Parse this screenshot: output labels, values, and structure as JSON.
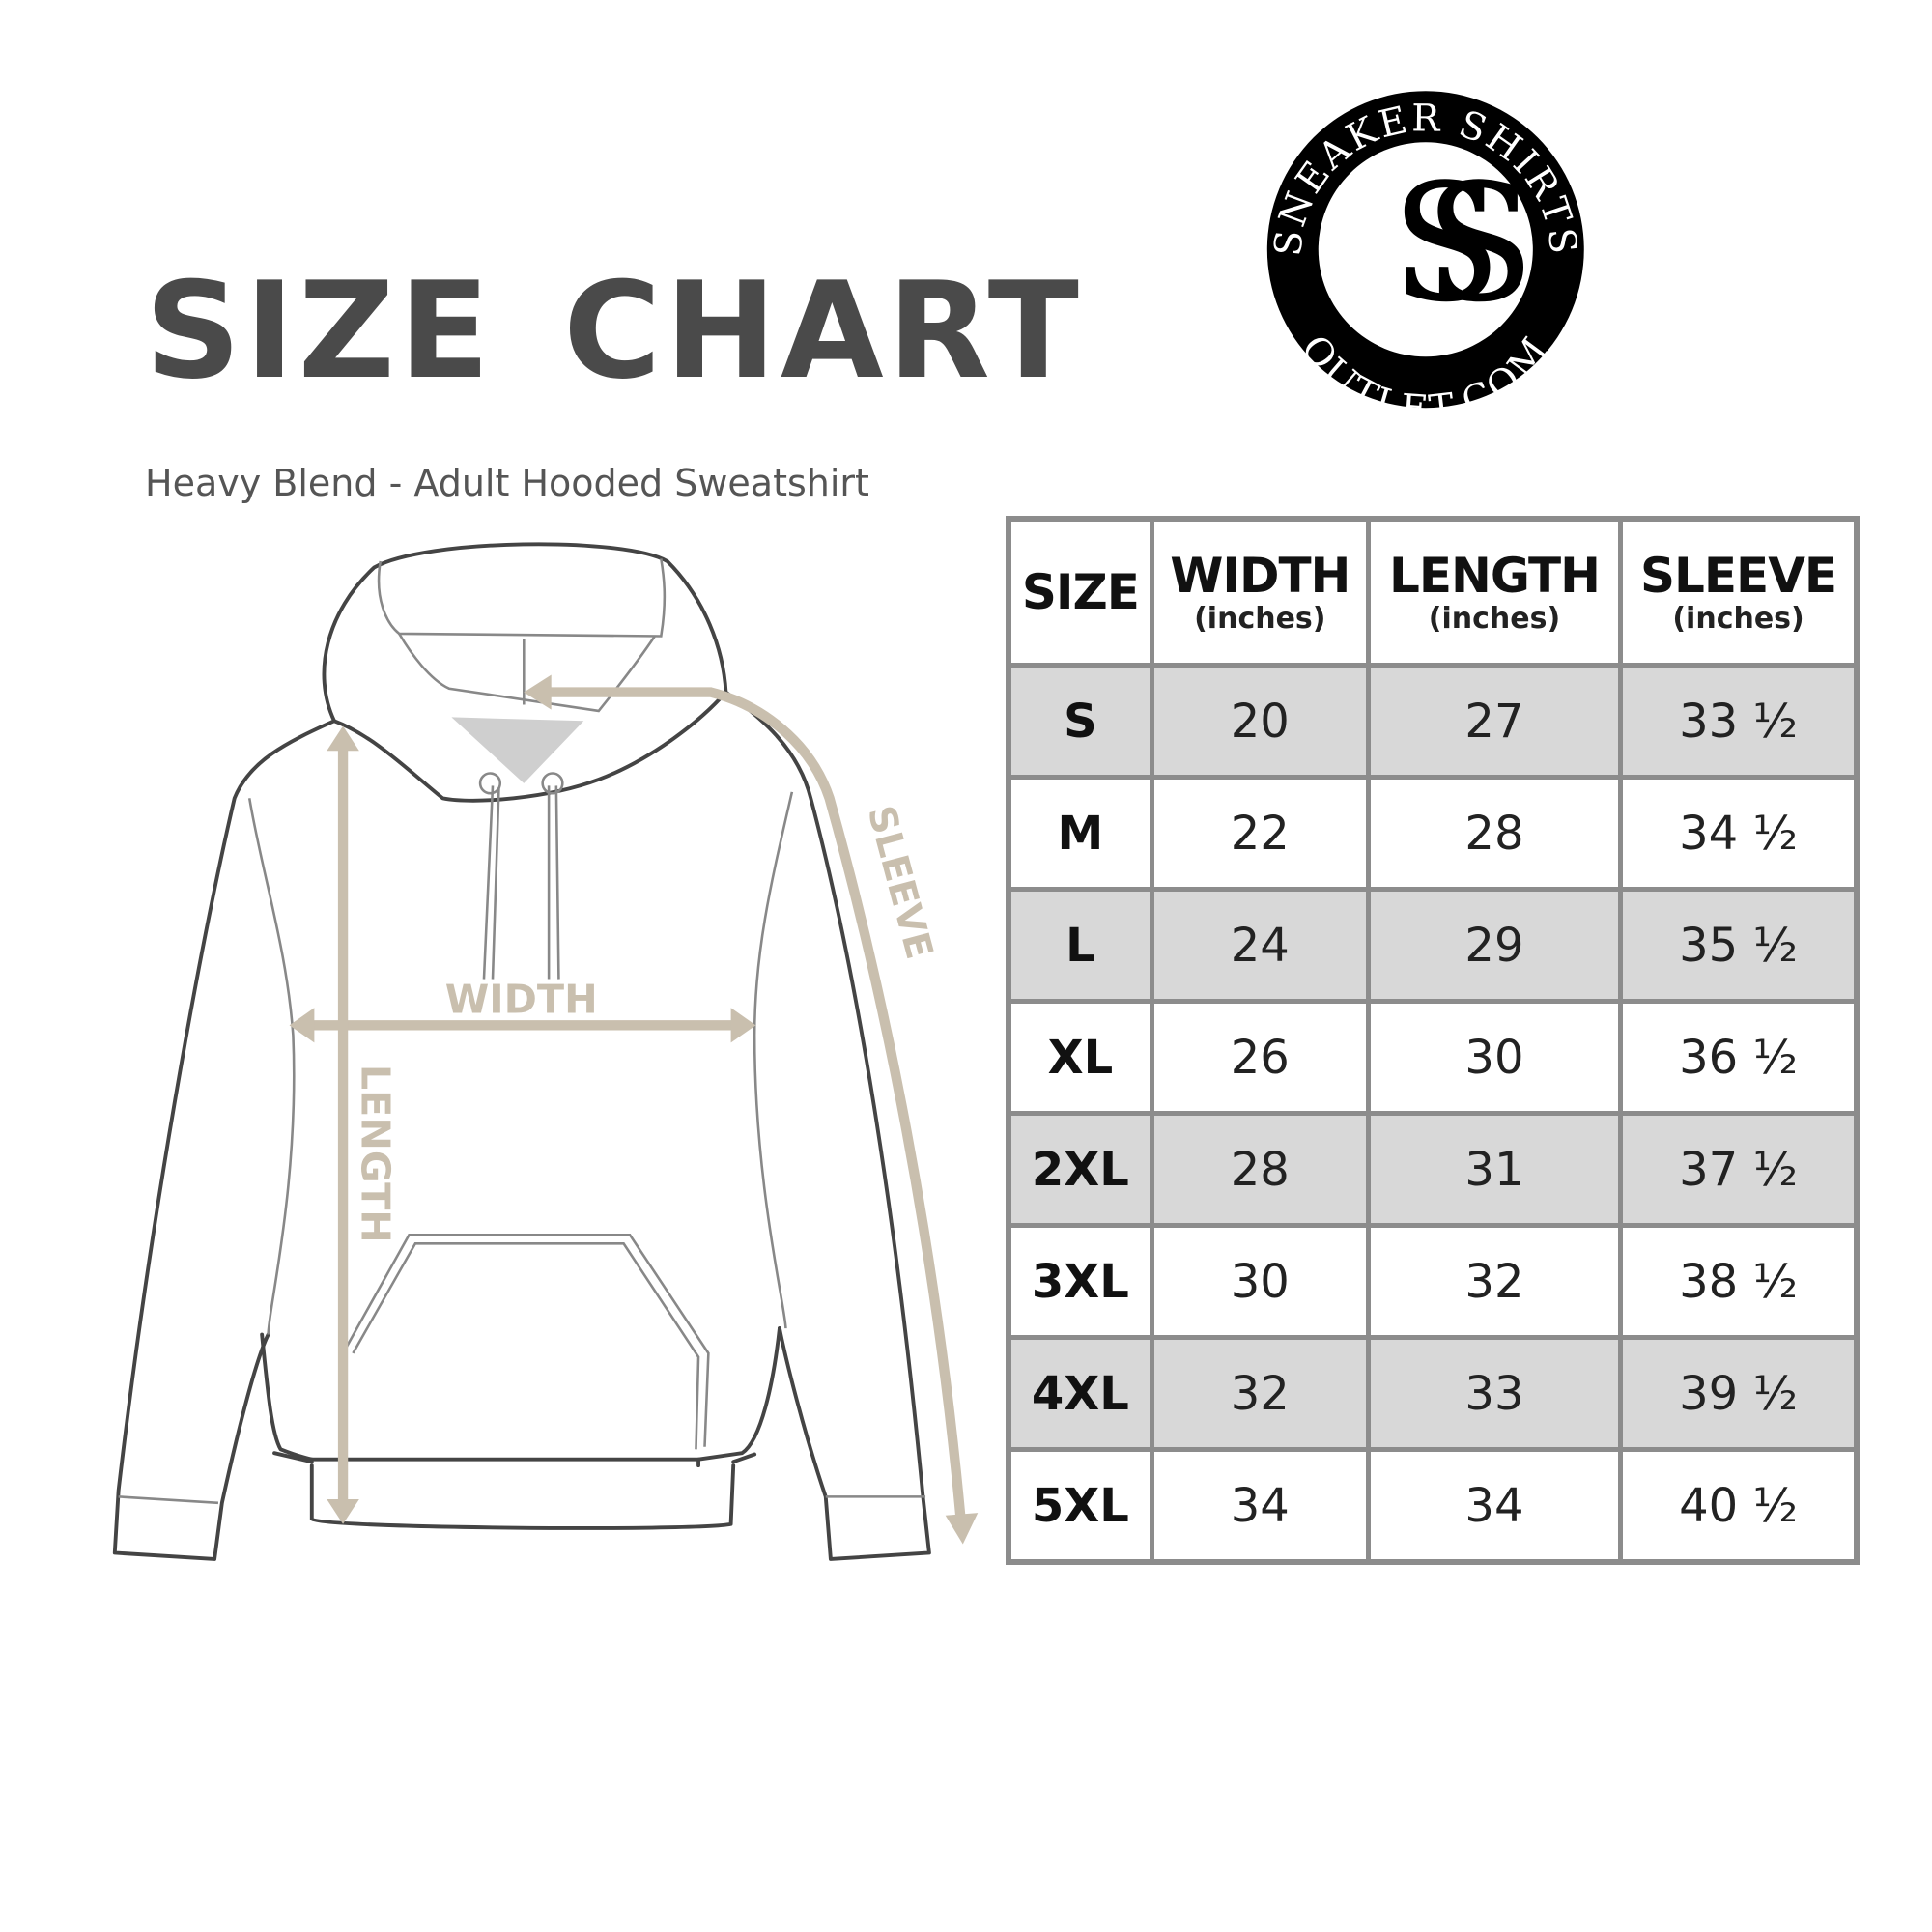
{
  "title": "SIZE CHART",
  "subtitle": "Heavy Blend - Adult Hooded Sweatshirt",
  "logo": {
    "top_text": "SNEAKER SHIRTS",
    "bottom_text": "OUTLET.COM",
    "monogram": "SS"
  },
  "diagram": {
    "width_label": "WIDTH",
    "length_label": "LENGTH",
    "sleeve_label": "SLEEVE",
    "arrow_color": "#c9bfae"
  },
  "table": {
    "headers": [
      {
        "label": "SIZE",
        "unit": ""
      },
      {
        "label": "WIDTH",
        "unit": "(inches)"
      },
      {
        "label": "LENGTH",
        "unit": "(inches)"
      },
      {
        "label": "SLEEVE",
        "unit": "(inches)"
      }
    ],
    "rows": [
      [
        "S",
        "20",
        "27",
        "33 ½"
      ],
      [
        "M",
        "22",
        "28",
        "34 ½"
      ],
      [
        "L",
        "24",
        "29",
        "35 ½"
      ],
      [
        "XL",
        "26",
        "30",
        "36 ½"
      ],
      [
        "2XL",
        "28",
        "31",
        "37 ½"
      ],
      [
        "3XL",
        "30",
        "32",
        "38 ½"
      ],
      [
        "4XL",
        "32",
        "33",
        "39 ½"
      ],
      [
        "5XL",
        "34",
        "34",
        "40 ½"
      ]
    ],
    "shade_color": "#d8d8d8",
    "border_color": "#8c8c8c"
  }
}
